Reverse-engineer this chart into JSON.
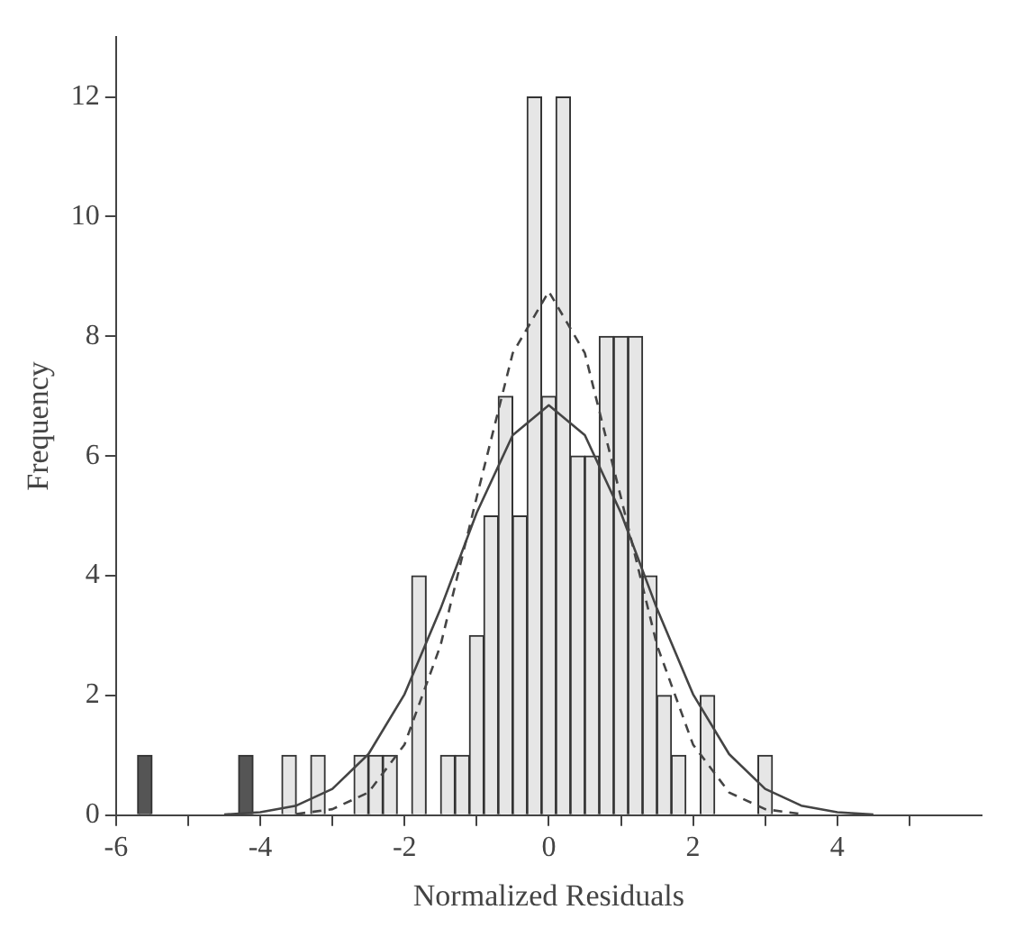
{
  "chart_data": {
    "type": "histogram",
    "xlabel": "Normalized Residuals",
    "ylabel": "Frequency",
    "bins": [
      -5.7,
      -5.5,
      -5.3,
      -5.1,
      -4.9,
      -4.7,
      -4.5,
      -4.3,
      -4.1,
      -3.9,
      -3.7,
      -3.5,
      -3.3,
      -3.1,
      -2.9,
      -2.7,
      -2.5,
      -2.3,
      -2.1,
      -1.9,
      -1.7,
      -1.5,
      -1.3,
      -1.1,
      -0.9,
      -0.7,
      -0.5,
      -0.3,
      -0.1,
      0.1,
      0.3,
      0.5,
      0.7,
      0.9,
      1.1,
      1.3,
      1.5,
      1.7,
      1.9,
      2.1,
      2.3,
      2.5,
      2.7,
      2.9,
      3.1
    ],
    "values": [
      1,
      0,
      0,
      0,
      0,
      0,
      0,
      1,
      0,
      0,
      1,
      0,
      1,
      0,
      0,
      1,
      1,
      1,
      0,
      4,
      0,
      1,
      1,
      3,
      5,
      7,
      5,
      12,
      7,
      12,
      6,
      6,
      8,
      8,
      8,
      4,
      2,
      1,
      0,
      2,
      0,
      0,
      0,
      1
    ],
    "colors": [
      "#555555",
      "#e6e6e6",
      "#e6e6e6",
      "#e6e6e6",
      "#e6e6e6",
      "#e6e6e6",
      "#e6e6e6",
      "#555555",
      "#e6e6e6",
      "#e6e6e6",
      "#e6e6e6",
      "#e6e6e6",
      "#e6e6e6",
      "#e6e6e6",
      "#e6e6e6",
      "#e6e6e6",
      "#e6e6e6",
      "#e6e6e6",
      "#e6e6e6",
      "#e6e6e6",
      "#e6e6e6",
      "#e6e6e6",
      "#e6e6e6",
      "#e6e6e6",
      "#e6e6e6",
      "#e6e6e6",
      "#e6e6e6",
      "#e6e6e6",
      "#e6e6e6",
      "#e6e6e6",
      "#e6e6e6",
      "#e6e6e6",
      "#e6e6e6",
      "#e6e6e6",
      "#e6e6e6",
      "#e6e6e6",
      "#e6e6e6",
      "#e6e6e6",
      "#e6e6e6",
      "#e6e6e6",
      "#e6e6e6",
      "#e6e6e6",
      "#e6e6e6",
      "#e6e6e6"
    ],
    "series": [
      {
        "type": "line",
        "color": "#444444",
        "line_style": "solid",
        "x": [
          -4.5,
          -4,
          -3.5,
          -3,
          -2.5,
          -2,
          -1.5,
          -1,
          -0.5,
          0,
          0.5,
          1,
          1.5,
          2,
          2.5,
          3,
          3.5,
          4,
          4.5
        ],
        "values": [
          0.01,
          0.05,
          0.16,
          0.44,
          1.02,
          2.02,
          3.45,
          5.05,
          6.35,
          6.85,
          6.35,
          5.05,
          3.45,
          2.02,
          1.02,
          0.44,
          0.16,
          0.05,
          0.01
        ]
      },
      {
        "type": "line",
        "color": "#444444",
        "line_style": "dashed",
        "x": [
          -3.5,
          -3,
          -2.5,
          -2,
          -1.5,
          -1,
          -0.5,
          0,
          0.5,
          1,
          1.5,
          2,
          2.5,
          3,
          3.5
        ],
        "values": [
          0.02,
          0.1,
          0.38,
          1.18,
          2.84,
          5.31,
          7.72,
          8.75,
          7.72,
          5.31,
          2.84,
          1.18,
          0.38,
          0.1,
          0.02
        ]
      }
    ],
    "xlim": [
      -6,
      6
    ],
    "xticks": [
      -6,
      {
        "value": -5,
        "label": null
      },
      -4,
      {
        "value": -3,
        "label": null
      },
      -2,
      {
        "value": -1,
        "label": null
      },
      0,
      {
        "value": 1,
        "label": null
      },
      2,
      {
        "value": 3,
        "label": null
      },
      4,
      {
        "value": 5,
        "label": null
      }
    ],
    "ylim": [
      0,
      13
    ],
    "yticks": [
      0,
      2,
      4,
      6,
      8,
      10,
      12
    ],
    "grid": false,
    "legend": false,
    "marker": "none"
  }
}
